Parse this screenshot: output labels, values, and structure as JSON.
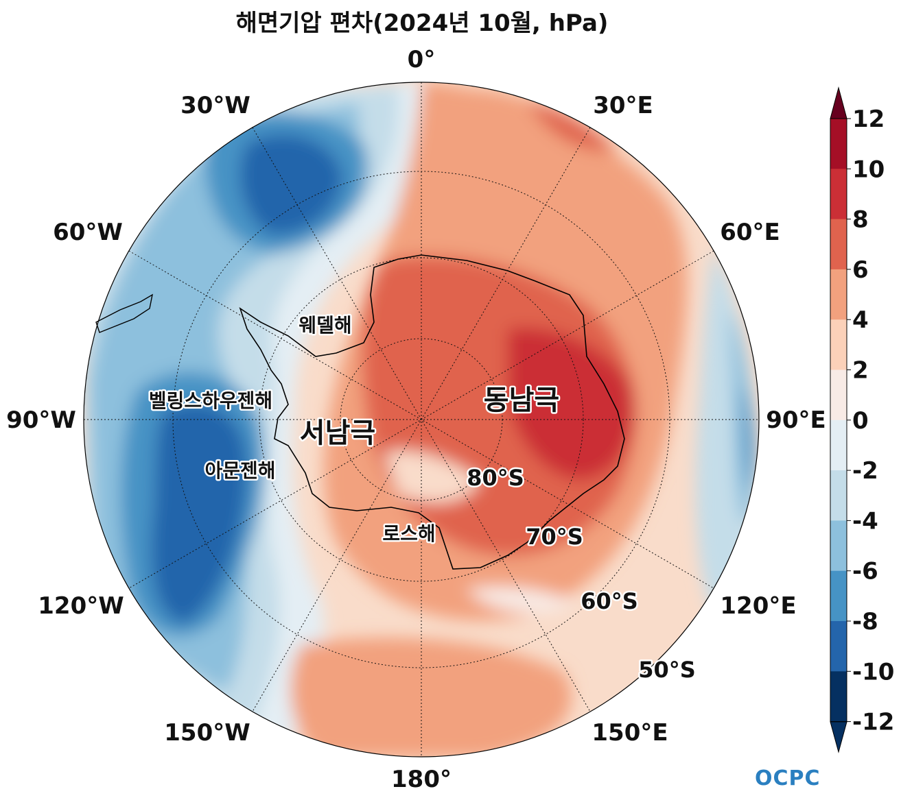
{
  "title": "해면기압 편차(2024년 10월, hPa)",
  "longitude_labels": [
    "0°",
    "30°E",
    "60°E",
    "90°E",
    "120°E",
    "150°E",
    "180°",
    "150°W",
    "120°W",
    "90°W",
    "60°W",
    "30°W"
  ],
  "latitude_labels": [
    "80°S",
    "70°S",
    "60°S",
    "50°S"
  ],
  "region_labels": {
    "west_antarctica": "서남극",
    "east_antarctica": "동남극",
    "weddell_sea": "웨델해",
    "bellingshausen_sea": "벨링스하우젠해",
    "amundsen_sea": "아문젠해",
    "ross_sea": "로스해"
  },
  "colorbar": {
    "ticks": [
      "12",
      "10",
      "8",
      "6",
      "4",
      "2",
      "0",
      "-2",
      "-4",
      "-6",
      "-8",
      "-10",
      "-12"
    ],
    "colors": [
      "#67001f",
      "#a50f26",
      "#cb2f36",
      "#e0634e",
      "#f2a17e",
      "#fbd1b9",
      "#f8ebe6",
      "#e4eef4",
      "#c4dde9",
      "#8dc0dd",
      "#4693c5",
      "#2465ab",
      "#053061"
    ]
  },
  "logo": "OCPC"
}
